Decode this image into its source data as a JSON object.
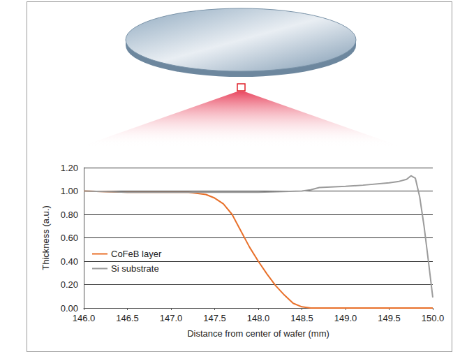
{
  "chart_data": {
    "type": "line",
    "x_label": "Distance from center of wafer (mm)",
    "y_label": "Thickness (a.u.)",
    "xlim": [
      146.0,
      150.0
    ],
    "xticks": [
      {
        "value": 146.0,
        "label": "146.0"
      },
      146.5,
      {
        "value": 147.0,
        "label": "147.0"
      },
      147.5,
      {
        "value": 148.0,
        "label": "148.0"
      },
      148.5,
      {
        "value": 149.0,
        "label": "149.0"
      },
      149.5,
      {
        "value": 150.0,
        "label": "150.0"
      }
    ],
    "ylim": [
      0,
      1.2
    ],
    "yticks": [
      {
        "value": 0,
        "label": "0.00"
      },
      {
        "value": 0.2,
        "label": "0.20"
      },
      {
        "value": 0.4,
        "label": "0.40"
      },
      {
        "value": 0.6,
        "label": "0.60"
      },
      {
        "value": 0.8,
        "label": "0.80"
      },
      {
        "value": 1.0,
        "label": "1.00"
      },
      {
        "value": 1.2,
        "label": "1.20"
      }
    ],
    "grid": "y",
    "legend": "left",
    "series": [
      {
        "name": "CoFeB layer",
        "color": "#e8702a",
        "marker": "none",
        "line_style": "solid",
        "x": [
          146.0,
          146.5,
          147.0,
          147.2,
          147.4,
          147.5,
          147.6,
          147.7,
          147.8,
          147.9,
          148.0,
          148.1,
          148.2,
          148.3,
          148.4,
          148.5,
          148.6,
          149.0,
          149.5,
          150.0
        ],
        "values": [
          1.0,
          0.99,
          0.99,
          0.99,
          0.97,
          0.94,
          0.89,
          0.8,
          0.66,
          0.52,
          0.4,
          0.29,
          0.19,
          0.11,
          0.04,
          0.01,
          0.0,
          0.0,
          0.0,
          0.0
        ]
      },
      {
        "name": "Si substrate",
        "color": "#9b9b9b",
        "marker": "none",
        "line_style": "solid",
        "x": [
          146.0,
          146.5,
          147.0,
          147.5,
          148.0,
          148.5,
          148.6,
          148.7,
          149.0,
          149.2,
          149.5,
          149.6,
          149.7,
          149.75,
          149.8,
          149.85,
          149.9,
          149.95,
          150.0
        ],
        "values": [
          1.0,
          0.99,
          0.99,
          0.99,
          0.99,
          1.0,
          1.01,
          1.03,
          1.04,
          1.05,
          1.07,
          1.08,
          1.1,
          1.13,
          1.11,
          0.95,
          0.7,
          0.4,
          0.09
        ]
      }
    ]
  }
}
